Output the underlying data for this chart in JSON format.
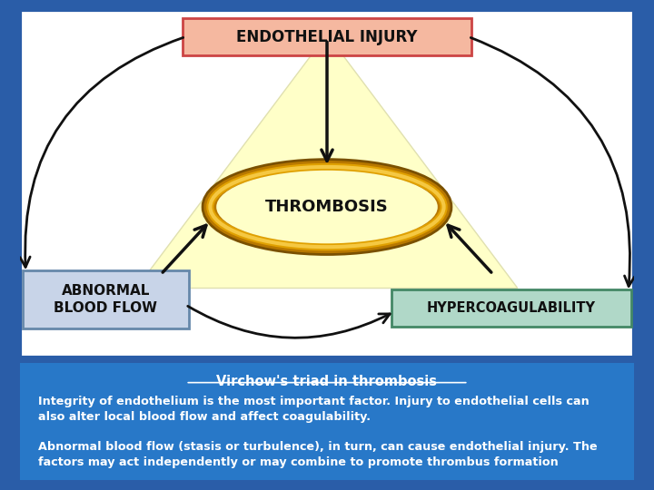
{
  "bg_outer": "#2a5da8",
  "bg_diagram": "#ffffff",
  "bg_text_panel": "#2878c8",
  "triangle_fill": "#ffffc8",
  "ellipse_fill": "#ffffc8",
  "box_endothelial_fill": "#f5b8a0",
  "box_endothelial_edge": "#cc4444",
  "box_abnormal_fill": "#c8d4e8",
  "box_abnormal_edge": "#6688aa",
  "box_hyper_fill": "#b0d8c8",
  "box_hyper_edge": "#448866",
  "title_text": "Virchow's triad in thrombosis",
  "title_color": "#ffffff",
  "body_text_1": "Integrity of endothelium is the most important factor. Injury to endothelial cells can\nalso alter local blood flow and affect coagulability.",
  "body_text_2": "Abnormal blood flow (stasis or turbulence), in turn, can cause endothelial injury. The\nfactors may act independently or may combine to promote thrombus formation",
  "text_color_white": "#ffffff",
  "text_color_dark": "#111111",
  "arrow_color": "#111111"
}
